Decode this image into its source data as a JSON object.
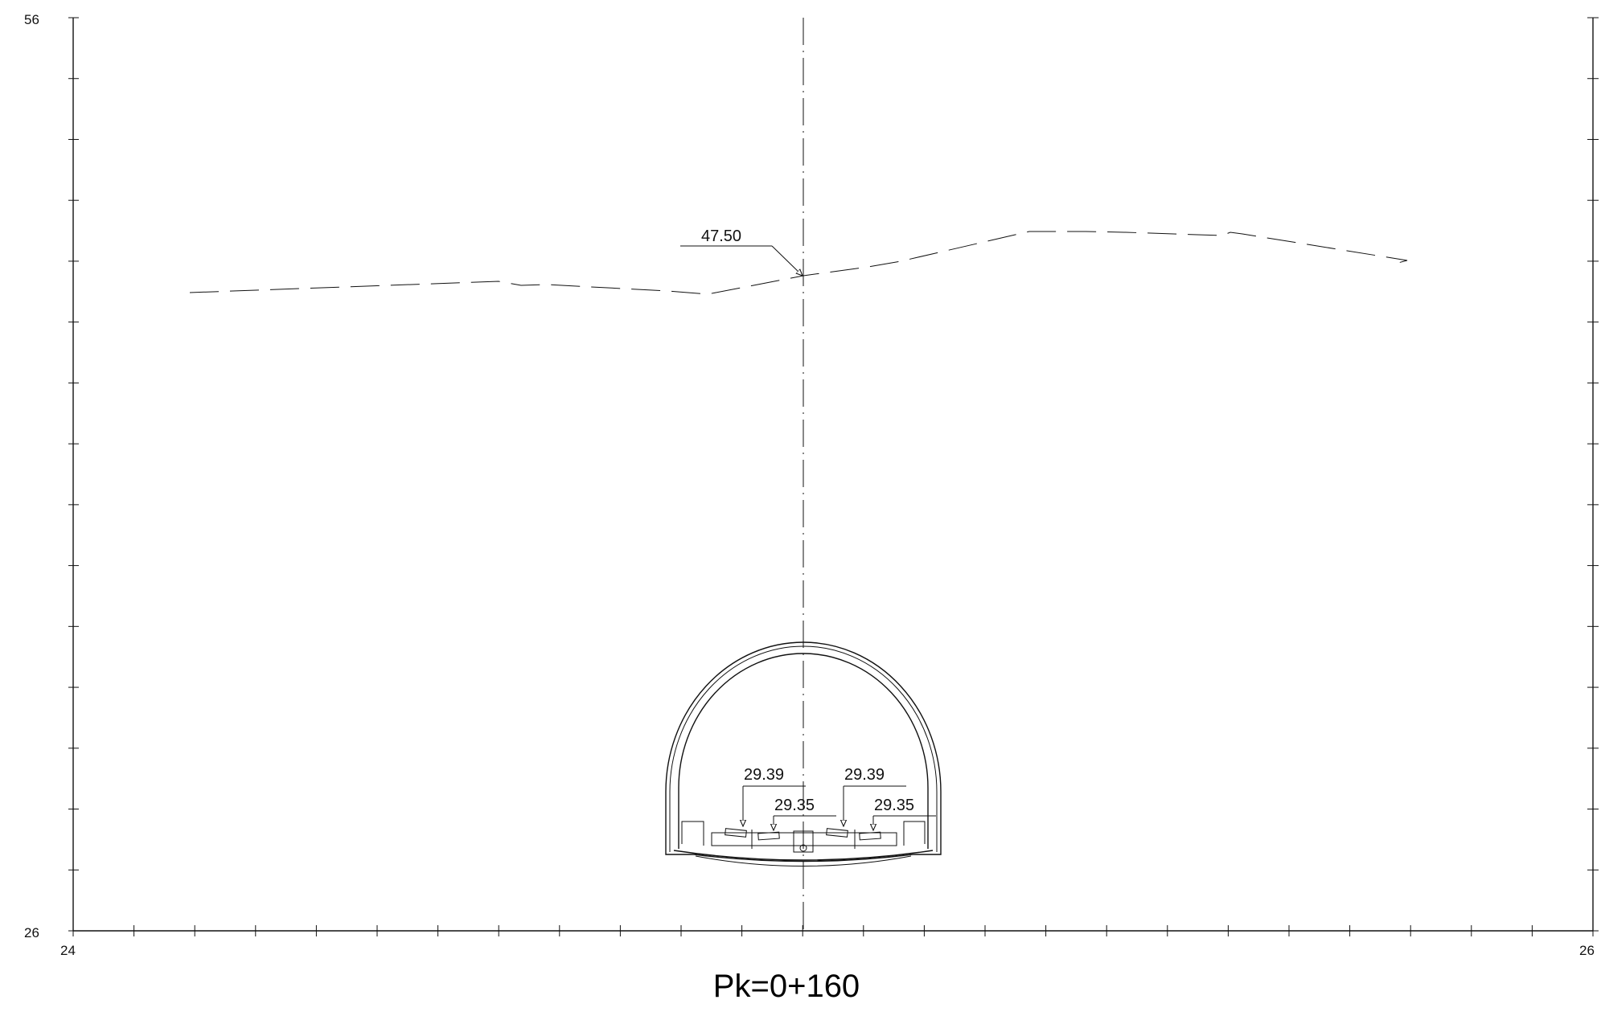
{
  "drawing": {
    "title": "Pk=0+160",
    "axis": {
      "y_top_label": "56",
      "y_bottom_label": "26",
      "x_left_label": "24",
      "x_right_label": "26"
    },
    "annotations": {
      "ground_level": "47.50",
      "rail_left_upper": "29.39",
      "rail_left_lower": "29.35",
      "rail_right_upper": "29.39",
      "rail_right_lower": "29.35"
    }
  }
}
